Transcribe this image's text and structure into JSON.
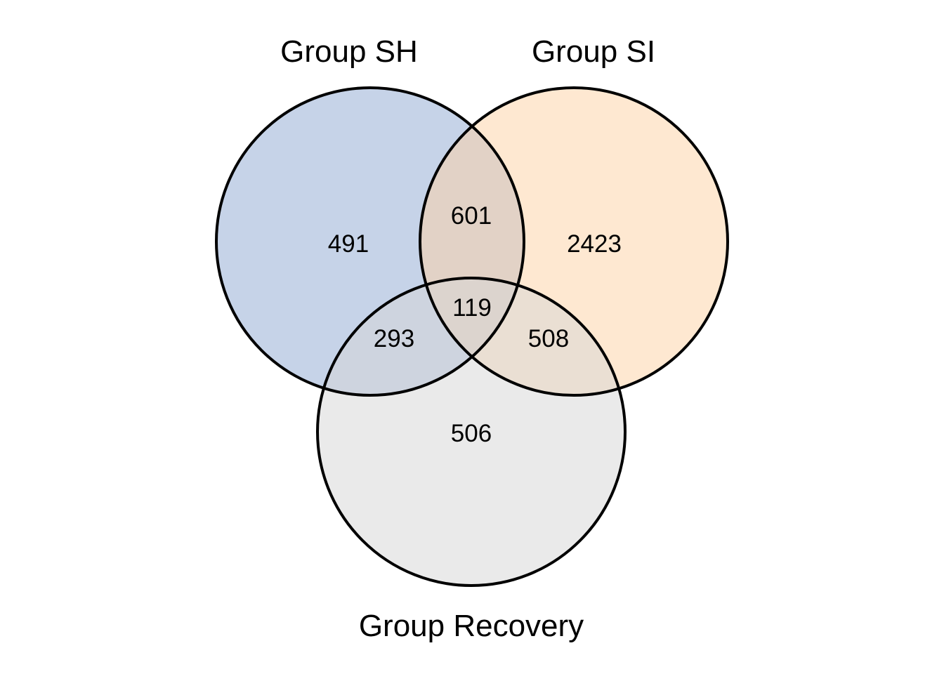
{
  "venn": {
    "sets": {
      "sh": {
        "label": "Group SH",
        "fill": "#8da8d1"
      },
      "si": {
        "label": "Group SI",
        "fill": "#fed1a4"
      },
      "recovery": {
        "label": "Group Recovery",
        "fill": "#d6d6d6"
      }
    },
    "regions": {
      "sh_only": "491",
      "si_only": "2423",
      "recovery_only": "506",
      "sh_si": "601",
      "sh_recovery": "293",
      "si_recovery": "508",
      "all": "119"
    },
    "stroke": "#000000"
  }
}
